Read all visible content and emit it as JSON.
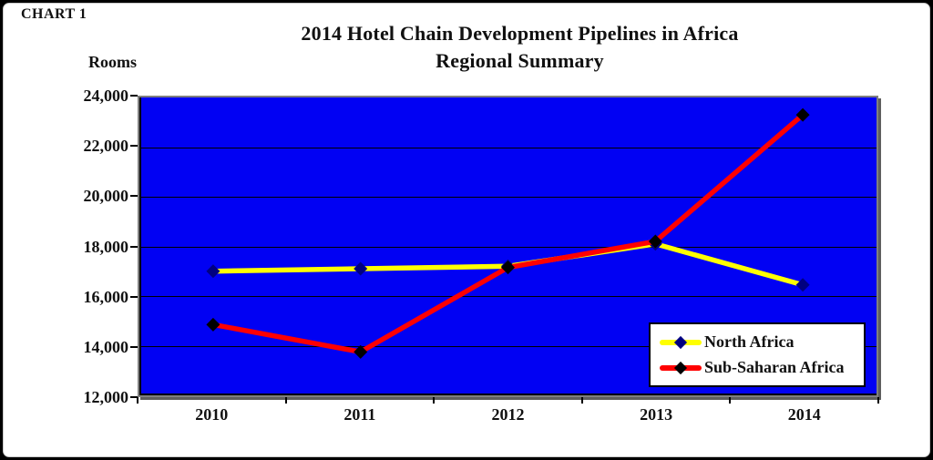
{
  "chart_label": "CHART 1",
  "chart_data": {
    "type": "line",
    "title": "2014 Hotel Chain Development Pipelines in Africa",
    "subtitle": "Regional Summary",
    "ylabel": "Rooms",
    "xlabel": "",
    "categories": [
      "2010",
      "2011",
      "2012",
      "2013",
      "2014"
    ],
    "series": [
      {
        "name": "North Africa",
        "line_color": "#ffff00",
        "marker_color": "#000080",
        "values": [
          17000,
          17100,
          17200,
          18100,
          16450
        ]
      },
      {
        "name": "Sub-Saharan Africa",
        "line_color": "#ff0000",
        "marker_color": "#000000",
        "values": [
          14850,
          13750,
          17150,
          18200,
          23300
        ]
      }
    ],
    "ylim": [
      12000,
      24000
    ],
    "y_tick_step": 2000,
    "y_tick_labels_top_down": [
      "24,000",
      "22,000",
      "20,000",
      "18,000",
      "16,000",
      "14,000",
      "12,000"
    ],
    "grid": "horizontal",
    "plot_bg_color": "#0101f3",
    "marker_shape": "diamond",
    "legend_position": "inside-bottom-right"
  }
}
